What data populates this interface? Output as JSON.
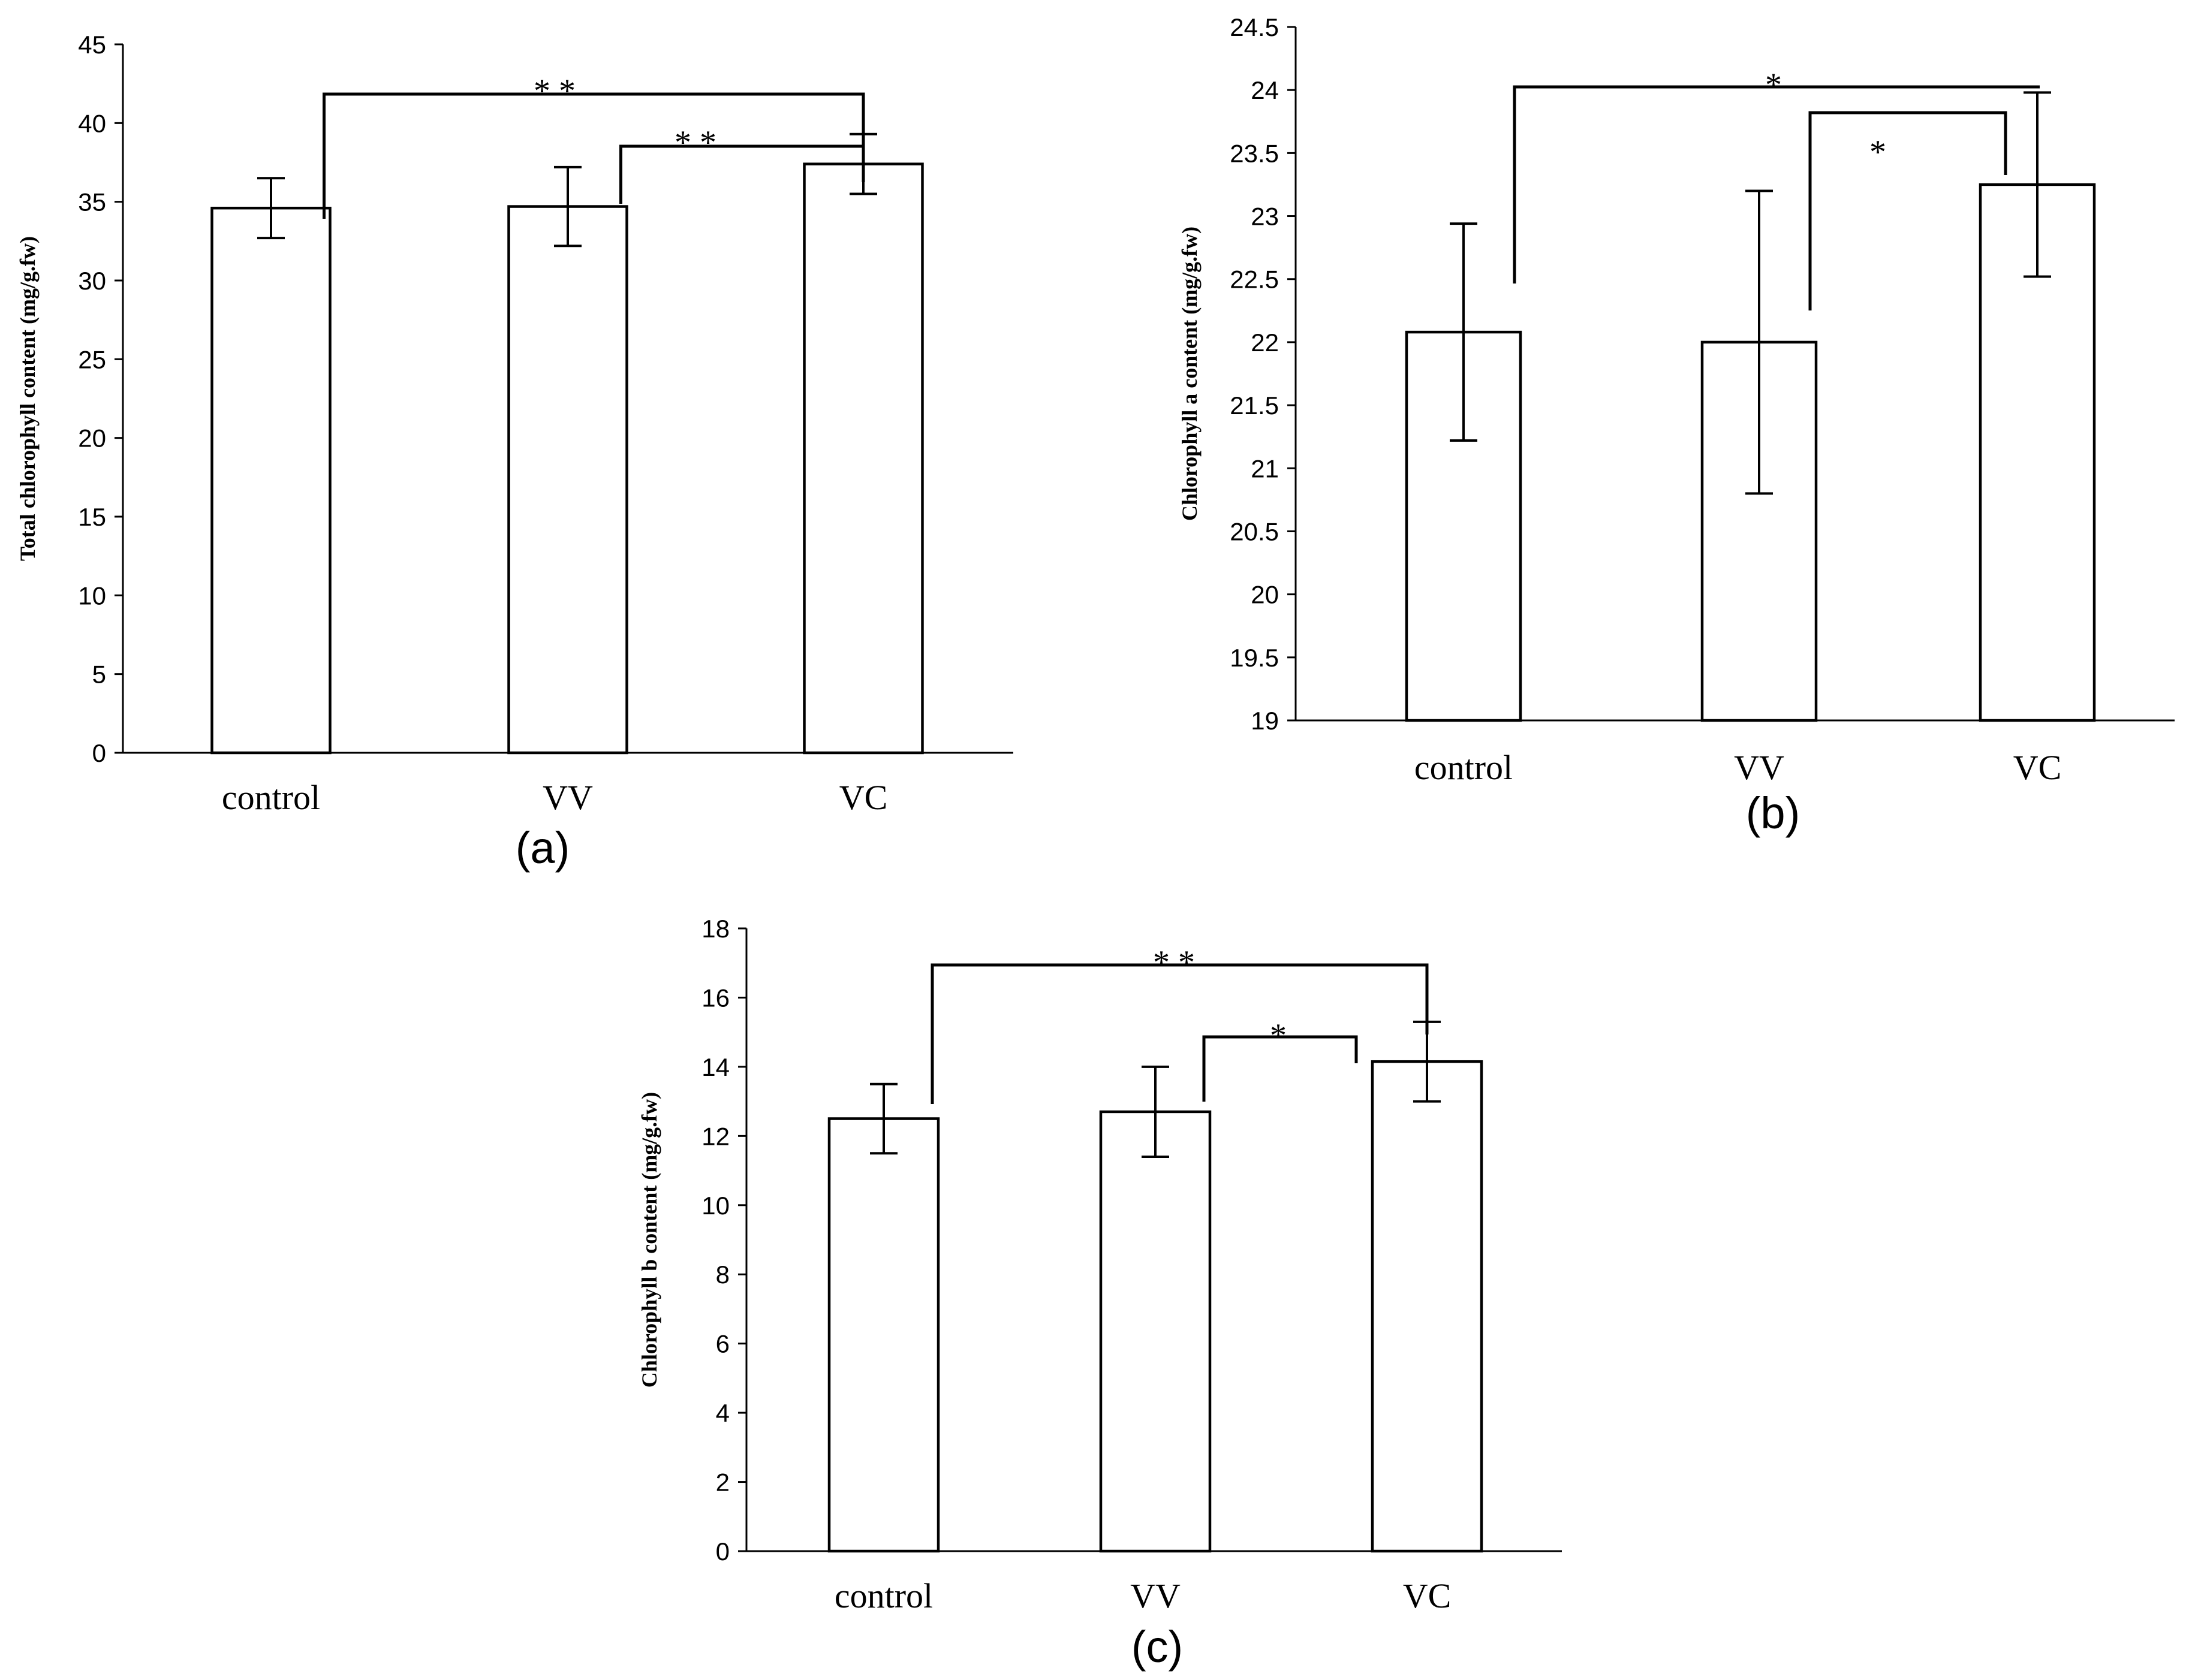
{
  "chart_data": [
    {
      "panel_label": "(a)",
      "type": "bar",
      "ylabel": "Total chlorophyll content (mg/g.fw)",
      "xlabel": "",
      "categories": [
        "control",
        "VV",
        "VC"
      ],
      "values": [
        34.6,
        34.7,
        37.4
      ],
      "error": [
        1.9,
        2.5,
        1.9
      ],
      "ylim": [
        0,
        45
      ],
      "yticks": [
        "0",
        "5",
        "10",
        "15",
        "20",
        "25",
        "30",
        "35",
        "40",
        "45"
      ],
      "grid": false,
      "significance": [
        {
          "from": "control",
          "to": "VC",
          "label": "* *"
        },
        {
          "from": "VV",
          "to": "VC",
          "label": "* *"
        }
      ]
    },
    {
      "panel_label": "(b)",
      "type": "bar",
      "ylabel": "Chlorophyll a content (mg/g.fw)",
      "xlabel": "",
      "categories": [
        "control",
        "VV",
        "VC"
      ],
      "values": [
        22.08,
        22.0,
        23.25
      ],
      "error": [
        0.86,
        1.2,
        0.73
      ],
      "ylim": [
        19,
        24.5
      ],
      "yticks": [
        "19",
        "19.5",
        "20",
        "20.5",
        "21",
        "21.5",
        "22",
        "22.5",
        "23",
        "23.5",
        "24",
        "24.5"
      ],
      "grid": false,
      "significance": [
        {
          "from": "control",
          "to": "VC",
          "label": "*"
        },
        {
          "from": "VV",
          "to": "VC",
          "label": "*"
        }
      ]
    },
    {
      "panel_label": "(c)",
      "type": "bar",
      "ylabel": "Chlorophyll b content (mg/g.fw)",
      "xlabel": "",
      "categories": [
        "control",
        "VV",
        "VC"
      ],
      "values": [
        12.5,
        12.7,
        14.15
      ],
      "error": [
        1.0,
        1.3,
        1.15
      ],
      "ylim": [
        0,
        18
      ],
      "yticks": [
        "0",
        "2",
        "4",
        "6",
        "8",
        "10",
        "12",
        "14",
        "16",
        "18"
      ],
      "grid": false,
      "significance": [
        {
          "from": "control",
          "to": "VC",
          "label": "* *"
        },
        {
          "from": "VV",
          "to": "VC",
          "label": "*"
        }
      ]
    }
  ]
}
